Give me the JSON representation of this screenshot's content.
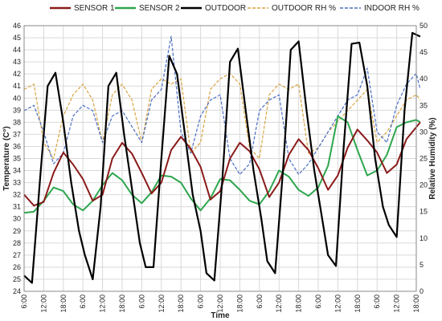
{
  "chart_data": {
    "type": "line",
    "xlabel": "Time",
    "ylabel_left": "Temperature (C°)",
    "ylabel_right": "Relative Humidity (%)",
    "ylim_left": [
      24,
      46
    ],
    "ylim_right": [
      0,
      50
    ],
    "grid": true,
    "legend_position": "top",
    "x_tick_labels": [
      "6:00",
      "12:00",
      "18:00",
      "6:00",
      "12:00",
      "18:00",
      "6:00",
      "12:00",
      "18:00",
      "6:00",
      "12:00",
      "18:00",
      "6:00",
      "12:00",
      "18:00",
      "6:00",
      "12:00",
      "18:00",
      "6:00",
      "12:00",
      "18:00"
    ],
    "y_left_ticks": [
      24,
      25,
      26,
      27,
      28,
      29,
      30,
      31,
      32,
      33,
      34,
      35,
      36,
      37,
      38,
      39,
      40,
      41,
      42,
      43,
      44,
      45,
      46
    ],
    "y_right_ticks": [
      0,
      5,
      10,
      15,
      20,
      25,
      30,
      35,
      40,
      45,
      50
    ],
    "series": [
      {
        "name": "SENSOR 1",
        "axis": "left",
        "color": "#8b1a1a",
        "style": "solid",
        "x": [
          0,
          0.5,
          1,
          1.5,
          2,
          2.5,
          3,
          3.5,
          4,
          4.5,
          5,
          5.5,
          6,
          6.5,
          7,
          7.5,
          8,
          8.5,
          9,
          9.5,
          10,
          10.5,
          11,
          11.5,
          12,
          12.5,
          13,
          13.5,
          14,
          14.5,
          15,
          15.5,
          16,
          16.5,
          17,
          17.5,
          18,
          18.5,
          19,
          19.5,
          20,
          20.2
        ],
        "y": [
          32.0,
          31.1,
          31.4,
          33.8,
          35.5,
          34.5,
          33.3,
          31.5,
          32.0,
          35.0,
          36.3,
          35.4,
          33.8,
          32.1,
          33.0,
          35.7,
          36.8,
          35.8,
          34.3,
          31.6,
          32.3,
          35.0,
          36.3,
          35.6,
          34.1,
          31.8,
          33.0,
          35.3,
          36.6,
          35.7,
          34.2,
          32.4,
          33.6,
          35.9,
          37.4,
          36.5,
          35.5,
          33.8,
          34.5,
          36.6,
          37.6,
          38.0
        ]
      },
      {
        "name": "SENSOR 2",
        "axis": "left",
        "color": "#2ea64e",
        "style": "solid",
        "x": [
          0,
          0.5,
          1,
          1.5,
          2,
          2.5,
          3,
          3.5,
          4,
          4.5,
          5,
          5.5,
          6,
          6.5,
          7,
          7.5,
          8,
          8.5,
          9,
          9.5,
          10,
          10.5,
          11,
          11.5,
          12,
          12.5,
          13,
          13.5,
          14,
          14.5,
          15,
          15.5,
          16,
          16.5,
          17,
          17.5,
          18,
          18.5,
          19,
          19.5,
          20,
          20.2
        ],
        "y": [
          30.5,
          30.6,
          31.5,
          32.6,
          32.3,
          31.2,
          30.7,
          31.5,
          32.8,
          33.8,
          33.2,
          32.0,
          31.3,
          32.2,
          33.6,
          33.5,
          33.0,
          31.7,
          30.7,
          31.7,
          33.3,
          33.2,
          32.4,
          31.5,
          31.2,
          32.3,
          34.0,
          33.5,
          32.4,
          31.9,
          32.6,
          34.4,
          38.5,
          38.0,
          35.7,
          33.6,
          34.0,
          35.3,
          37.6,
          38.0,
          38.2,
          38.0
        ]
      },
      {
        "name": "OUTDOOR",
        "axis": "left",
        "color": "#000000",
        "style": "solid",
        "x": [
          0,
          0.4,
          0.8,
          1.2,
          1.6,
          2.0,
          2.4,
          2.8,
          3.1,
          3.5,
          3.9,
          4.3,
          4.7,
          5.1,
          5.5,
          5.9,
          6.2,
          6.6,
          7.0,
          7.4,
          7.8,
          8.2,
          8.6,
          9.0,
          9.3,
          9.7,
          10.1,
          10.5,
          10.9,
          11.3,
          11.7,
          12.1,
          12.4,
          12.8,
          13.2,
          13.6,
          14.0,
          14.4,
          14.8,
          15.2,
          15.5,
          15.9,
          16.3,
          16.7,
          17.1,
          17.5,
          17.9,
          18.3,
          18.6,
          19.0,
          19.4,
          19.8,
          20.2
        ],
        "y": [
          25.3,
          24.7,
          33.0,
          41.0,
          42.1,
          38.0,
          33.0,
          29.0,
          27.0,
          25.0,
          31.0,
          41.0,
          42.1,
          37.0,
          32.5,
          28.0,
          26.0,
          26.0,
          35.0,
          43.5,
          42.0,
          37.0,
          32.0,
          29.0,
          25.5,
          24.9,
          33.0,
          43.0,
          44.1,
          39.0,
          34.0,
          30.0,
          26.5,
          25.5,
          34.0,
          44.0,
          44.7,
          39.0,
          34.0,
          30.0,
          27.0,
          26.1,
          36.0,
          44.5,
          44.6,
          41.0,
          35.0,
          31.0,
          29.5,
          28.5,
          39.0,
          45.4,
          45.1
        ]
      },
      {
        "name": "OUTDOOR RH %",
        "axis": "right",
        "color": "#d9a441",
        "style": "dash",
        "x": [
          0,
          0.5,
          1,
          1.5,
          2,
          2.5,
          3,
          3.5,
          4,
          4.5,
          5,
          5.5,
          6,
          6.5,
          7,
          7.5,
          8,
          8.5,
          9,
          9.5,
          10,
          10.5,
          11,
          11.5,
          12,
          12.5,
          13,
          13.5,
          14,
          14.5,
          15,
          15.5,
          16,
          16.5,
          17,
          17.5,
          18,
          18.5,
          19,
          19.5,
          20,
          20.2
        ],
        "y": [
          38,
          39,
          28,
          25,
          33,
          37,
          39,
          36,
          28,
          37,
          39,
          36,
          28,
          38,
          40,
          39,
          40,
          26,
          28,
          38,
          40,
          41,
          39,
          27,
          25,
          37,
          39,
          38,
          39,
          26,
          27,
          30,
          32,
          34,
          36,
          38,
          28,
          30,
          33,
          36,
          37,
          36
        ]
      },
      {
        "name": "INDOOR RH %",
        "axis": "right",
        "color": "#4a6fc4",
        "style": "dash",
        "x": [
          0,
          0.5,
          1,
          1.5,
          2,
          2.5,
          3,
          3.5,
          4,
          4.5,
          5,
          5.5,
          6,
          6.5,
          7,
          7.5,
          8,
          8.5,
          9,
          9.5,
          10,
          10.5,
          11,
          11.5,
          12,
          12.5,
          13,
          13.5,
          14,
          14.5,
          15,
          15.5,
          16,
          16.5,
          17,
          17.5,
          18,
          18.5,
          19,
          19.5,
          20,
          20.2
        ],
        "y": [
          34,
          35,
          30,
          24,
          26,
          33,
          35,
          34,
          28,
          33,
          34,
          31,
          28,
          36,
          38,
          48,
          30,
          26,
          33,
          36,
          37,
          25,
          22,
          24,
          34,
          36,
          37,
          25,
          22,
          24,
          27,
          30,
          33,
          36,
          37,
          42,
          30,
          28,
          35,
          39,
          41,
          38
        ]
      }
    ]
  }
}
